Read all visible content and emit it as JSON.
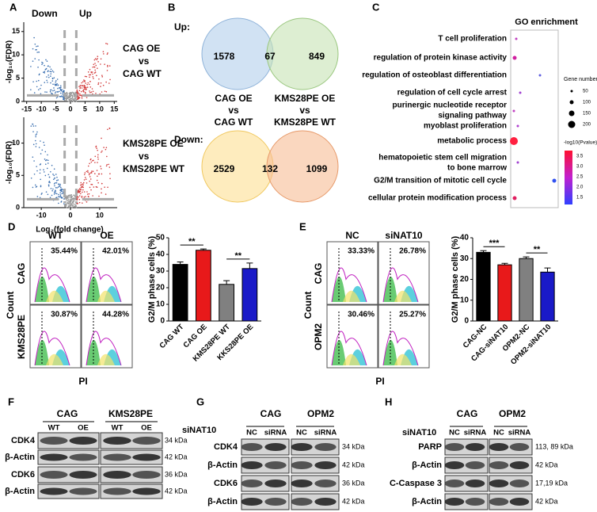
{
  "panel_labels": [
    "A",
    "B",
    "C",
    "D",
    "E",
    "F",
    "G",
    "H"
  ],
  "volcano": {
    "header": [
      "Down",
      "Up"
    ],
    "ylabel": "-log₁₀(FDR)",
    "xlabel": "Log₂(fold change)",
    "plots": [
      {
        "comparison": [
          "CAG OE",
          "vs",
          "CAG WT"
        ],
        "xlim": [
          -16,
          16
        ],
        "ylim": [
          0,
          17
        ],
        "xticks": [
          -15,
          -10,
          -5,
          0,
          5,
          10,
          15
        ],
        "yticks": [
          0,
          5,
          10,
          15
        ]
      },
      {
        "comparison": [
          "KMS28PE OE",
          "vs",
          "KMS28PE WT"
        ],
        "xlim": [
          -16,
          16
        ],
        "ylim": [
          0,
          14
        ],
        "xticks": [
          -10,
          0,
          10
        ],
        "yticks": [
          0,
          5,
          10
        ]
      }
    ]
  },
  "venn": {
    "up": {
      "label": "Up:",
      "counts": [
        1578,
        67,
        849
      ]
    },
    "groups": [
      [
        "CAG OE",
        "vs",
        "CAG WT"
      ],
      [
        "KMS28PE OE",
        "vs",
        "KMS28PE WT"
      ]
    ],
    "down": {
      "label": "Down:",
      "counts": [
        2529,
        132,
        1099
      ]
    }
  },
  "go": {
    "title": "GO enrichment",
    "terms": [
      [
        "T cell proliferation"
      ],
      [
        "regulation of protein kinase activity"
      ],
      [
        "regulation of osteoblast differentiation"
      ],
      [
        "regulation of cell cycle arrest"
      ],
      [
        "purinergic nucleotide receptor",
        "signaling pathway"
      ],
      [
        "myoblast proliferation"
      ],
      [
        "metabolic process"
      ],
      [
        "hematopoietic stem cell migration",
        "to bone marrow"
      ],
      [
        "G2/M transition of mitotic cell cycle"
      ],
      [
        "cellular protein modification process"
      ]
    ],
    "size_legend": {
      "title": "Gene number",
      "values": [
        50,
        100,
        150,
        200
      ]
    },
    "color_legend": {
      "title": "-log10(Pvalue)",
      "values": [
        {
          "value": 3.5,
          "label": "3.5"
        },
        {
          "value": 3,
          "label": "3.0"
        },
        {
          "value": 2.5,
          "label": "2.5"
        },
        {
          "value": 2,
          "label": "2.0"
        },
        {
          "value": 1.5,
          "label": "1.5"
        }
      ]
    }
  },
  "flow_d": {
    "columns": [
      "WT",
      "OE"
    ],
    "rows": [
      "CAG",
      "KMS28PE"
    ],
    "percentages": [
      [
        "35.44%",
        "42.01%"
      ],
      [
        "30.87%",
        "44.28%"
      ]
    ],
    "ylabel": "Count",
    "xlabel": "PI"
  },
  "flow_e": {
    "columns": [
      "NC",
      "siNAT10"
    ],
    "rows": [
      "CAG",
      "OPM2"
    ],
    "percentages": [
      [
        "33.33%",
        "26.78%"
      ],
      [
        "30.46%",
        "25.27%"
      ]
    ],
    "ylabel": "Count",
    "xlabel": "PI"
  },
  "chart_data": [
    {
      "type": "bar",
      "ylabel": "G2/M phase cells (%)",
      "categories": [
        "CAG WT",
        "CAG OE",
        "KMS28PE WT",
        "KKS28PE OE"
      ],
      "values": [
        34,
        42.5,
        22,
        31.5
      ],
      "errors": [
        1.5,
        0.8,
        2.2,
        3.3
      ],
      "colors": [
        "#000000",
        "#e8191a",
        "#808080",
        "#1a1ac8"
      ],
      "ylim": [
        0,
        50
      ],
      "yticks": [
        0,
        10,
        20,
        30,
        40,
        50
      ],
      "annotations": [
        "**",
        "**"
      ]
    },
    {
      "type": "bar",
      "ylabel": "G2/M phase cells (%)",
      "categories": [
        "CAG-NC",
        "CAG-siNAT10",
        "OPM2-NC",
        "OPM2-siNAT10"
      ],
      "values": [
        33,
        27,
        30,
        23.5
      ],
      "errors": [
        0.8,
        0.7,
        0.8,
        2
      ],
      "colors": [
        "#000000",
        "#e8191a",
        "#808080",
        "#1a1ac8"
      ],
      "ylim": [
        0,
        40
      ],
      "yticks": [
        0,
        10,
        20,
        30,
        40
      ],
      "annotations": [
        "***",
        "**"
      ]
    }
  ],
  "blot_f": {
    "groups": [
      "CAG",
      "KMS28PE"
    ],
    "lanes": [
      "WT",
      "OE",
      "WT",
      "OE"
    ],
    "rows": [
      {
        "label": "CDK4",
        "size": "34 kDa"
      },
      {
        "label": "β-Actin",
        "size": "42 kDa"
      },
      {
        "label": "CDK6",
        "size": "36 kDa"
      },
      {
        "label": "β-Actin",
        "size": "42 kDa"
      }
    ]
  },
  "blot_g": {
    "treatment": "siNAT10",
    "groups": [
      "CAG",
      "OPM2"
    ],
    "lanes": [
      "NC",
      "siRNA",
      "NC",
      "siRNA"
    ],
    "rows": [
      {
        "label": "CDK4",
        "size": "34 kDa"
      },
      {
        "label": "β-Actin",
        "size": "42 kDa"
      },
      {
        "label": "CDK6",
        "size": "36 kDa"
      },
      {
        "label": "β-Actin",
        "size": "42 kDa"
      }
    ]
  },
  "blot_h": {
    "treatment": "siNAT10",
    "groups": [
      "CAG",
      "OPM2"
    ],
    "lanes": [
      "NC",
      "siRNA",
      "NC",
      "siRNA"
    ],
    "rows": [
      {
        "label": "PARP",
        "size": "113, 89 kDa"
      },
      {
        "label": "β-Actin",
        "size": "42 kDa"
      },
      {
        "label": "C-Caspase 3",
        "size": "17,19 kDa"
      },
      {
        "label": "β-Actin",
        "size": "42 kDa"
      }
    ]
  }
}
